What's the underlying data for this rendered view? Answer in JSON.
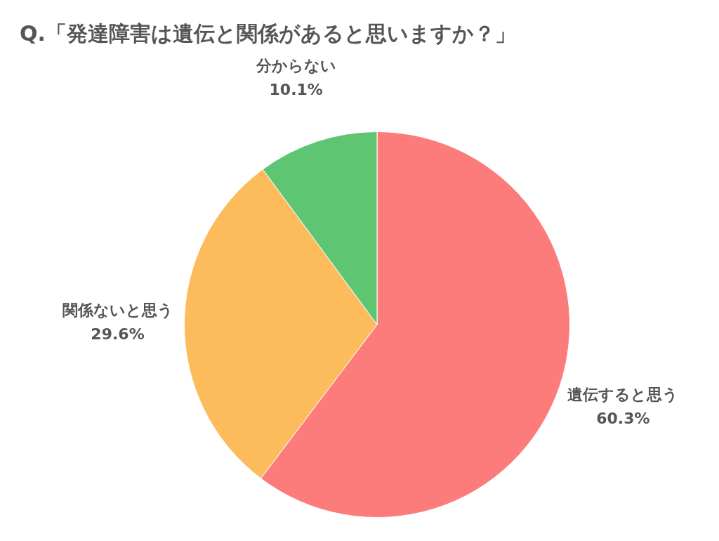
{
  "chart_data": {
    "type": "pie",
    "title": "Q.「発達障害は遺伝と関係があると思いますか？」",
    "categories": [
      "遺伝すると思う",
      "関係ないと思う",
      "分からない"
    ],
    "values": [
      60.3,
      29.6,
      10.1
    ],
    "value_labels": [
      "60.3%",
      "29.6%",
      "10.1%"
    ],
    "colors": [
      "#fc7b7b",
      "#fcbc5c",
      "#5ec672"
    ],
    "legend": false
  }
}
